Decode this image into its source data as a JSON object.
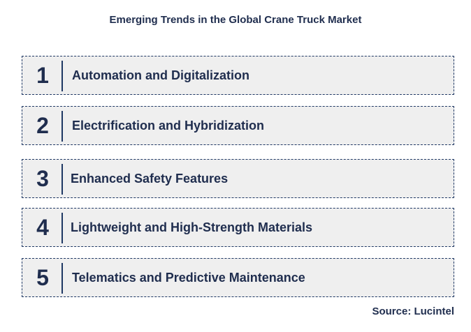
{
  "title": "Emerging Trends in the Global Crane Truck Market",
  "trends": [
    {
      "number": "1",
      "label": "Automation and Digitalization"
    },
    {
      "number": "2",
      "label": "Electrification and Hybridization"
    },
    {
      "number": "3",
      "label": "Enhanced Safety Features"
    },
    {
      "number": "4",
      "label": "Lightweight and High-Strength Materials"
    },
    {
      "number": "5",
      "label": "Telematics and Predictive Maintenance"
    }
  ],
  "source": "Source: Lucintel"
}
